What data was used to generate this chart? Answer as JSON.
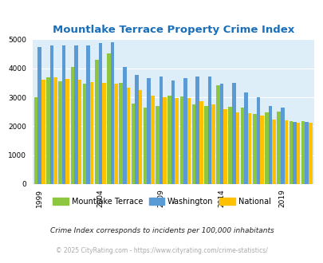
{
  "title": "Mountlake Terrace Property Crime Index",
  "title_color": "#1a6fba",
  "years": [
    1999,
    2000,
    2001,
    2002,
    2003,
    2004,
    2005,
    2006,
    2007,
    2008,
    2009,
    2010,
    2011,
    2012,
    2013,
    2014,
    2015,
    2016,
    2017,
    2018,
    2019,
    2020,
    2021
  ],
  "mountlake_terrace": [
    3000,
    3700,
    3550,
    4050,
    3480,
    4290,
    4510,
    3500,
    2780,
    2640,
    2700,
    3050,
    3030,
    2750,
    2700,
    3420,
    2680,
    2650,
    2430,
    2490,
    2520,
    2190,
    2165
  ],
  "washington": [
    4730,
    4790,
    4780,
    4780,
    4780,
    4870,
    4910,
    4040,
    3780,
    3670,
    3710,
    3570,
    3670,
    3720,
    3710,
    3480,
    3510,
    3160,
    3005,
    2700,
    2650,
    2140,
    2160
  ],
  "national": [
    3620,
    3680,
    3640,
    3610,
    3520,
    3510,
    3470,
    3340,
    3260,
    3070,
    3000,
    2980,
    2970,
    2870,
    2750,
    2600,
    2490,
    2450,
    2360,
    2230,
    2200,
    2120,
    2109
  ],
  "colors": {
    "mountlake_terrace": "#8dc63f",
    "washington": "#5b9bd5",
    "national": "#ffc000"
  },
  "ylim": [
    0,
    5000
  ],
  "yticks": [
    0,
    1000,
    2000,
    3000,
    4000,
    5000
  ],
  "xtick_years": [
    1999,
    2004,
    2009,
    2014,
    2019
  ],
  "plot_bg": "#deeef8",
  "legend_labels": [
    "Mountlake Terrace",
    "Washington",
    "National"
  ],
  "footnote1": "Crime Index corresponds to incidents per 100,000 inhabitants",
  "footnote2": "© 2025 CityRating.com - https://www.cityrating.com/crime-statistics/",
  "footnote1_color": "#222222",
  "footnote2_color": "#aaaaaa"
}
